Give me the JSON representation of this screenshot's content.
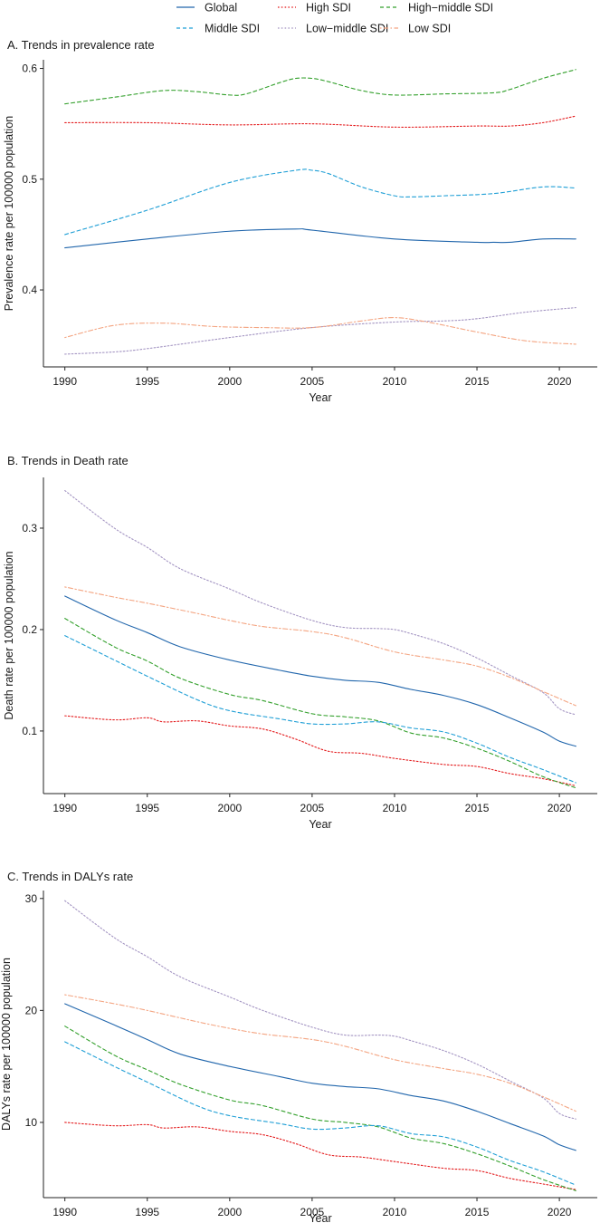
{
  "legend": {
    "items": [
      {
        "name": "Global",
        "color": "#2166ac",
        "dash": "solid"
      },
      {
        "name": "High SDI",
        "color": "#e41a1c",
        "dash": "dotted"
      },
      {
        "name": "High−middle SDI",
        "color": "#33a02c",
        "dash": "dashed"
      },
      {
        "name": "Middle SDI",
        "color": "#1f9fd6",
        "dash": "dashed"
      },
      {
        "name": "Low−middle SDI",
        "color": "#a394c2",
        "dash": "dotted"
      },
      {
        "name": "Low SDI",
        "color": "#f4a582",
        "dash": "dotdash"
      }
    ]
  },
  "chart_data": [
    {
      "type": "line",
      "title": "A. Trends in prevalence rate",
      "xlabel": "Year",
      "ylabel": "Prevalence rate per 100000 population",
      "xlim": [
        1988.7,
        2022.3
      ],
      "ylim": [
        0.3305,
        0.6078
      ],
      "xticks": [
        1990,
        1995,
        2000,
        2005,
        2010,
        2015,
        2020
      ],
      "yticks": [
        0.4,
        0.5,
        0.6
      ],
      "ytick_labels": [
        "0.4",
        "0.5",
        "0.6"
      ],
      "series": [
        {
          "name": "Global",
          "x": [
            1990,
            1995,
            2000,
            2004,
            2005,
            2010,
            2015,
            2016,
            2017,
            2019,
            2021
          ],
          "values": [
            0.438,
            0.446,
            0.453,
            0.455,
            0.454,
            0.446,
            0.443,
            0.443,
            0.443,
            0.446,
            0.446
          ]
        },
        {
          "name": "High SDI",
          "x": [
            1990,
            1995,
            2000,
            2005,
            2010,
            2015,
            2017,
            2019,
            2021
          ],
          "values": [
            0.551,
            0.551,
            0.549,
            0.55,
            0.547,
            0.548,
            0.548,
            0.551,
            0.557
          ]
        },
        {
          "name": "High−middle SDI",
          "x": [
            1990,
            1993,
            1996,
            1998,
            2000,
            2001,
            2003,
            2004,
            2005,
            2006,
            2008,
            2010,
            2013,
            2016,
            2017,
            2019,
            2021
          ],
          "values": [
            0.568,
            0.574,
            0.58,
            0.579,
            0.576,
            0.577,
            0.587,
            0.591,
            0.591,
            0.588,
            0.58,
            0.576,
            0.577,
            0.578,
            0.581,
            0.591,
            0.599
          ]
        },
        {
          "name": "Middle SDI",
          "x": [
            1990,
            1995,
            2000,
            2004,
            2005,
            2006,
            2008,
            2010,
            2011,
            2013,
            2016,
            2019,
            2021
          ],
          "values": [
            0.45,
            0.472,
            0.497,
            0.508,
            0.508,
            0.505,
            0.493,
            0.485,
            0.484,
            0.485,
            0.487,
            0.493,
            0.492
          ]
        },
        {
          "name": "Low−middle SDI",
          "x": [
            1990,
            1993,
            1995,
            2000,
            2005,
            2010,
            2013,
            2015,
            2018,
            2021
          ],
          "values": [
            0.342,
            0.344,
            0.347,
            0.357,
            0.366,
            0.371,
            0.372,
            0.374,
            0.38,
            0.384
          ]
        },
        {
          "name": "Low SDI",
          "x": [
            1990,
            1993,
            1996,
            1999,
            2002,
            2005,
            2008,
            2010,
            2012,
            2015,
            2018,
            2021
          ],
          "values": [
            0.357,
            0.368,
            0.37,
            0.367,
            0.366,
            0.366,
            0.372,
            0.375,
            0.371,
            0.362,
            0.354,
            0.351
          ]
        }
      ]
    },
    {
      "type": "line",
      "title": "B. Trends in Death rate",
      "xlabel": "Year",
      "ylabel": "Death rate per 100000 population",
      "xlim": [
        1988.7,
        2022.3
      ],
      "ylim": [
        0.0383,
        0.35
      ],
      "xticks": [
        1990,
        1995,
        2000,
        2005,
        2010,
        2015,
        2020
      ],
      "yticks": [
        0.1,
        0.2,
        0.3
      ],
      "ytick_labels": [
        "0.1",
        "0.2",
        "0.3"
      ],
      "series": [
        {
          "name": "Global",
          "x": [
            1990,
            1993,
            1995,
            1997,
            2000,
            2003,
            2005,
            2007,
            2009,
            2011,
            2013,
            2015,
            2017,
            2019,
            2020,
            2021
          ],
          "values": [
            0.233,
            0.21,
            0.197,
            0.183,
            0.17,
            0.16,
            0.154,
            0.15,
            0.148,
            0.141,
            0.135,
            0.126,
            0.113,
            0.099,
            0.09,
            0.085
          ]
        },
        {
          "name": "High SDI",
          "x": [
            1990,
            1993,
            1995,
            1996,
            1998,
            2000,
            2002,
            2004,
            2006,
            2008,
            2010,
            2013,
            2015,
            2017,
            2019,
            2021
          ],
          "values": [
            0.115,
            0.111,
            0.113,
            0.109,
            0.11,
            0.105,
            0.102,
            0.092,
            0.08,
            0.078,
            0.073,
            0.067,
            0.065,
            0.058,
            0.053,
            0.046
          ]
        },
        {
          "name": "High−middle SDI",
          "x": [
            1990,
            1993,
            1995,
            1997,
            2000,
            2002,
            2005,
            2007,
            2009,
            2011,
            2013,
            2015,
            2017,
            2019,
            2021
          ],
          "values": [
            0.211,
            0.183,
            0.169,
            0.152,
            0.136,
            0.13,
            0.117,
            0.114,
            0.11,
            0.098,
            0.093,
            0.083,
            0.07,
            0.055,
            0.044
          ]
        },
        {
          "name": "Middle SDI",
          "x": [
            1990,
            1993,
            1995,
            1998,
            2000,
            2003,
            2005,
            2007,
            2009,
            2011,
            2013,
            2015,
            2017,
            2019,
            2021
          ],
          "values": [
            0.194,
            0.17,
            0.154,
            0.131,
            0.12,
            0.112,
            0.107,
            0.107,
            0.109,
            0.103,
            0.099,
            0.088,
            0.074,
            0.062,
            0.049
          ]
        },
        {
          "name": "Low−middle SDI",
          "x": [
            1990,
            1993,
            1995,
            1997,
            2000,
            2002,
            2005,
            2007,
            2009,
            2010,
            2011,
            2013,
            2015,
            2017,
            2019,
            2020,
            2021
          ],
          "values": [
            0.337,
            0.3,
            0.281,
            0.26,
            0.24,
            0.226,
            0.209,
            0.202,
            0.201,
            0.2,
            0.196,
            0.186,
            0.172,
            0.155,
            0.138,
            0.122,
            0.116
          ]
        },
        {
          "name": "Low SDI",
          "x": [
            1990,
            1993,
            1995,
            1998,
            2000,
            2002,
            2005,
            2007,
            2010,
            2013,
            2015,
            2017,
            2019,
            2021
          ],
          "values": [
            0.242,
            0.232,
            0.226,
            0.216,
            0.209,
            0.203,
            0.198,
            0.192,
            0.178,
            0.17,
            0.164,
            0.153,
            0.139,
            0.125
          ]
        }
      ]
    },
    {
      "type": "line",
      "title": "C. Trends in DALYs rate",
      "xlabel": "Year",
      "ylabel": "DALYs  rate per 100000 population",
      "xlim": [
        1988.7,
        2022.3
      ],
      "ylim": [
        3.28,
        30.71
      ],
      "xticks": [
        1990,
        1995,
        2000,
        2005,
        2010,
        2015,
        2020
      ],
      "yticks": [
        10,
        20,
        30
      ],
      "ytick_labels": [
        "10",
        "20",
        "30"
      ],
      "series": [
        {
          "name": "Global",
          "x": [
            1990,
            1993,
            1995,
            1997,
            2000,
            2003,
            2005,
            2007,
            2009,
            2011,
            2013,
            2015,
            2017,
            2019,
            2020,
            2021
          ],
          "values": [
            20.6,
            18.7,
            17.4,
            16.1,
            15.0,
            14.1,
            13.5,
            13.2,
            13.0,
            12.4,
            11.9,
            11.0,
            9.9,
            8.8,
            8.0,
            7.5
          ]
        },
        {
          "name": "High SDI",
          "x": [
            1990,
            1993,
            1995,
            1996,
            1998,
            2000,
            2002,
            2004,
            2006,
            2008,
            2010,
            2013,
            2015,
            2017,
            2019,
            2021
          ],
          "values": [
            10.0,
            9.7,
            9.8,
            9.5,
            9.6,
            9.2,
            8.9,
            8.1,
            7.1,
            6.9,
            6.5,
            5.9,
            5.7,
            5.0,
            4.5,
            4.0
          ]
        },
        {
          "name": "High−middle SDI",
          "x": [
            1990,
            1993,
            1995,
            1997,
            2000,
            2002,
            2005,
            2007,
            2009,
            2011,
            2013,
            2015,
            2017,
            2019,
            2021
          ],
          "values": [
            18.6,
            16.0,
            14.7,
            13.4,
            12.0,
            11.5,
            10.3,
            10.0,
            9.6,
            8.6,
            8.1,
            7.2,
            6.1,
            4.9,
            3.9
          ]
        },
        {
          "name": "Middle SDI",
          "x": [
            1990,
            1993,
            1995,
            1998,
            2000,
            2003,
            2005,
            2007,
            2009,
            2011,
            2013,
            2015,
            2017,
            2019,
            2021
          ],
          "values": [
            17.2,
            15.0,
            13.6,
            11.5,
            10.6,
            9.9,
            9.4,
            9.5,
            9.7,
            9.0,
            8.7,
            7.8,
            6.6,
            5.6,
            4.4
          ]
        },
        {
          "name": "Low−middle SDI",
          "x": [
            1990,
            1993,
            1995,
            1997,
            2000,
            2002,
            2005,
            2007,
            2009,
            2010,
            2011,
            2013,
            2015,
            2017,
            2019,
            2020,
            2021
          ],
          "values": [
            29.8,
            26.5,
            24.8,
            23.0,
            21.2,
            20.0,
            18.5,
            17.8,
            17.8,
            17.7,
            17.3,
            16.4,
            15.2,
            13.7,
            12.2,
            10.8,
            10.3
          ]
        },
        {
          "name": "Low SDI",
          "x": [
            1990,
            1993,
            1995,
            1998,
            2000,
            2002,
            2005,
            2007,
            2010,
            2013,
            2015,
            2017,
            2019,
            2021
          ],
          "values": [
            21.4,
            20.6,
            20.0,
            19.0,
            18.4,
            17.9,
            17.4,
            16.8,
            15.6,
            14.8,
            14.3,
            13.5,
            12.3,
            11.0
          ]
        }
      ]
    }
  ]
}
